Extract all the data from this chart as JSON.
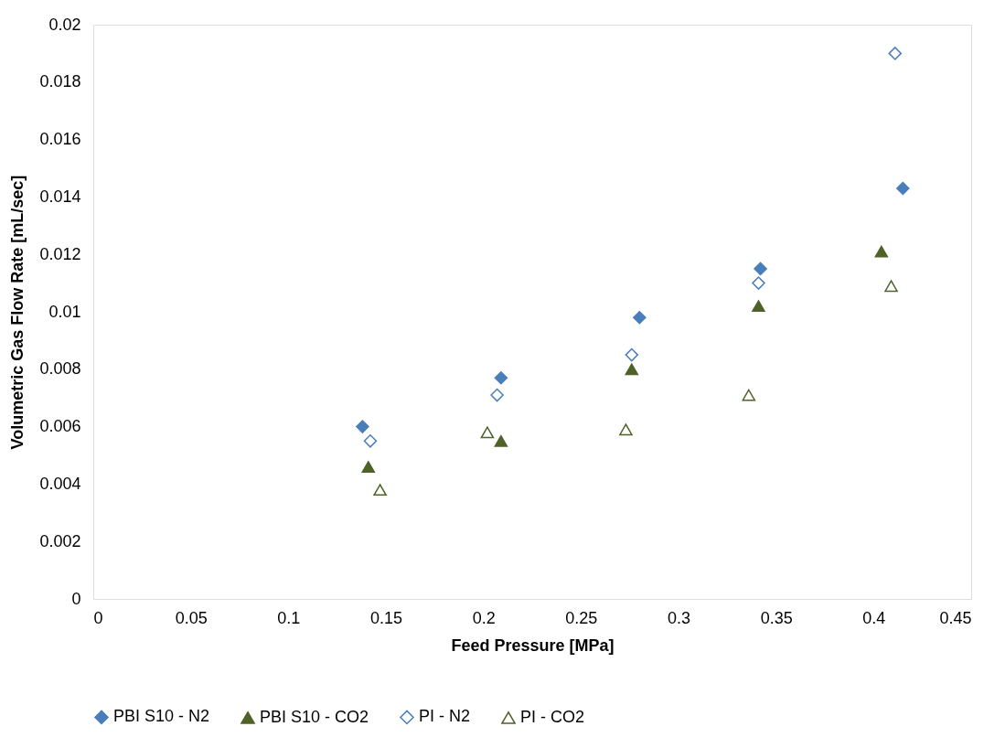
{
  "chart_data": {
    "type": "scatter",
    "xlabel": "Feed Pressure [MPa]",
    "ylabel": "Volumetric Gas Flow Rate [mL/sec]",
    "xlim": [
      0,
      0.45
    ],
    "xticks": [
      0,
      0.05,
      0.1,
      0.15,
      0.2,
      0.25,
      0.3,
      0.35,
      0.4,
      0.45
    ],
    "ylim": [
      0,
      0.02
    ],
    "yticks": [
      0,
      0.002,
      0.004,
      0.006,
      0.008,
      0.01,
      0.012,
      0.014,
      0.016,
      0.018,
      0.02
    ],
    "grid": false,
    "legend": "bottom",
    "series": [
      {
        "name": "PBI S10 - N2",
        "color": "#4a7ebb",
        "marker": "diamond",
        "x": [
          0.138,
          0.209,
          0.28,
          0.342,
          0.415
        ],
        "values": [
          0.006,
          0.0077,
          0.0098,
          0.0115,
          0.0143
        ]
      },
      {
        "name": "PBI S10 - CO2",
        "color": "#4f6228",
        "marker": "triangle",
        "x": [
          0.141,
          0.209,
          0.276,
          0.341,
          0.404
        ],
        "values": [
          0.0046,
          0.0055,
          0.008,
          0.0102,
          0.0121
        ]
      },
      {
        "name": "PI - N2",
        "color": "#4a7ebb",
        "marker": "diamond",
        "x": [
          0.142,
          0.207,
          0.276,
          0.341,
          0.411
        ],
        "values": [
          0.0055,
          0.0071,
          0.0085,
          0.011,
          0.019
        ]
      },
      {
        "name": "PI - CO2",
        "color": "#4f6228",
        "marker": "triangle",
        "x": [
          0.147,
          0.202,
          0.273,
          0.336,
          0.409
        ],
        "values": [
          0.0038,
          0.0058,
          0.0059,
          0.0071,
          0.0109
        ]
      }
    ]
  }
}
